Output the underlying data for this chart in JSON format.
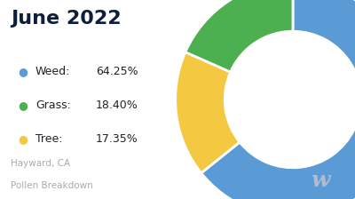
{
  "title": "June 2022",
  "labels": [
    "Weed",
    "Grass",
    "Tree"
  ],
  "values": [
    64.25,
    18.4,
    17.35
  ],
  "colors": [
    "#5B9BD5",
    "#4CAF50",
    "#F5C842"
  ],
  "legend_dots": [
    "#5B9BD5",
    "#4CAF50",
    "#F5C842"
  ],
  "legend_names": [
    "Weed:",
    "Grass:",
    "Tree:"
  ],
  "legend_pcts": [
    "64.25%",
    "18.40%",
    "17.35%"
  ],
  "subtitle_line1": "Hayward, CA",
  "subtitle_line2": "Pollen Breakdown",
  "background_color": "#ffffff",
  "title_color": "#0d1f3c",
  "subtitle_color": "#aaaaaa",
  "watermark_color": "#b0bdd0",
  "donut_width": 0.42
}
